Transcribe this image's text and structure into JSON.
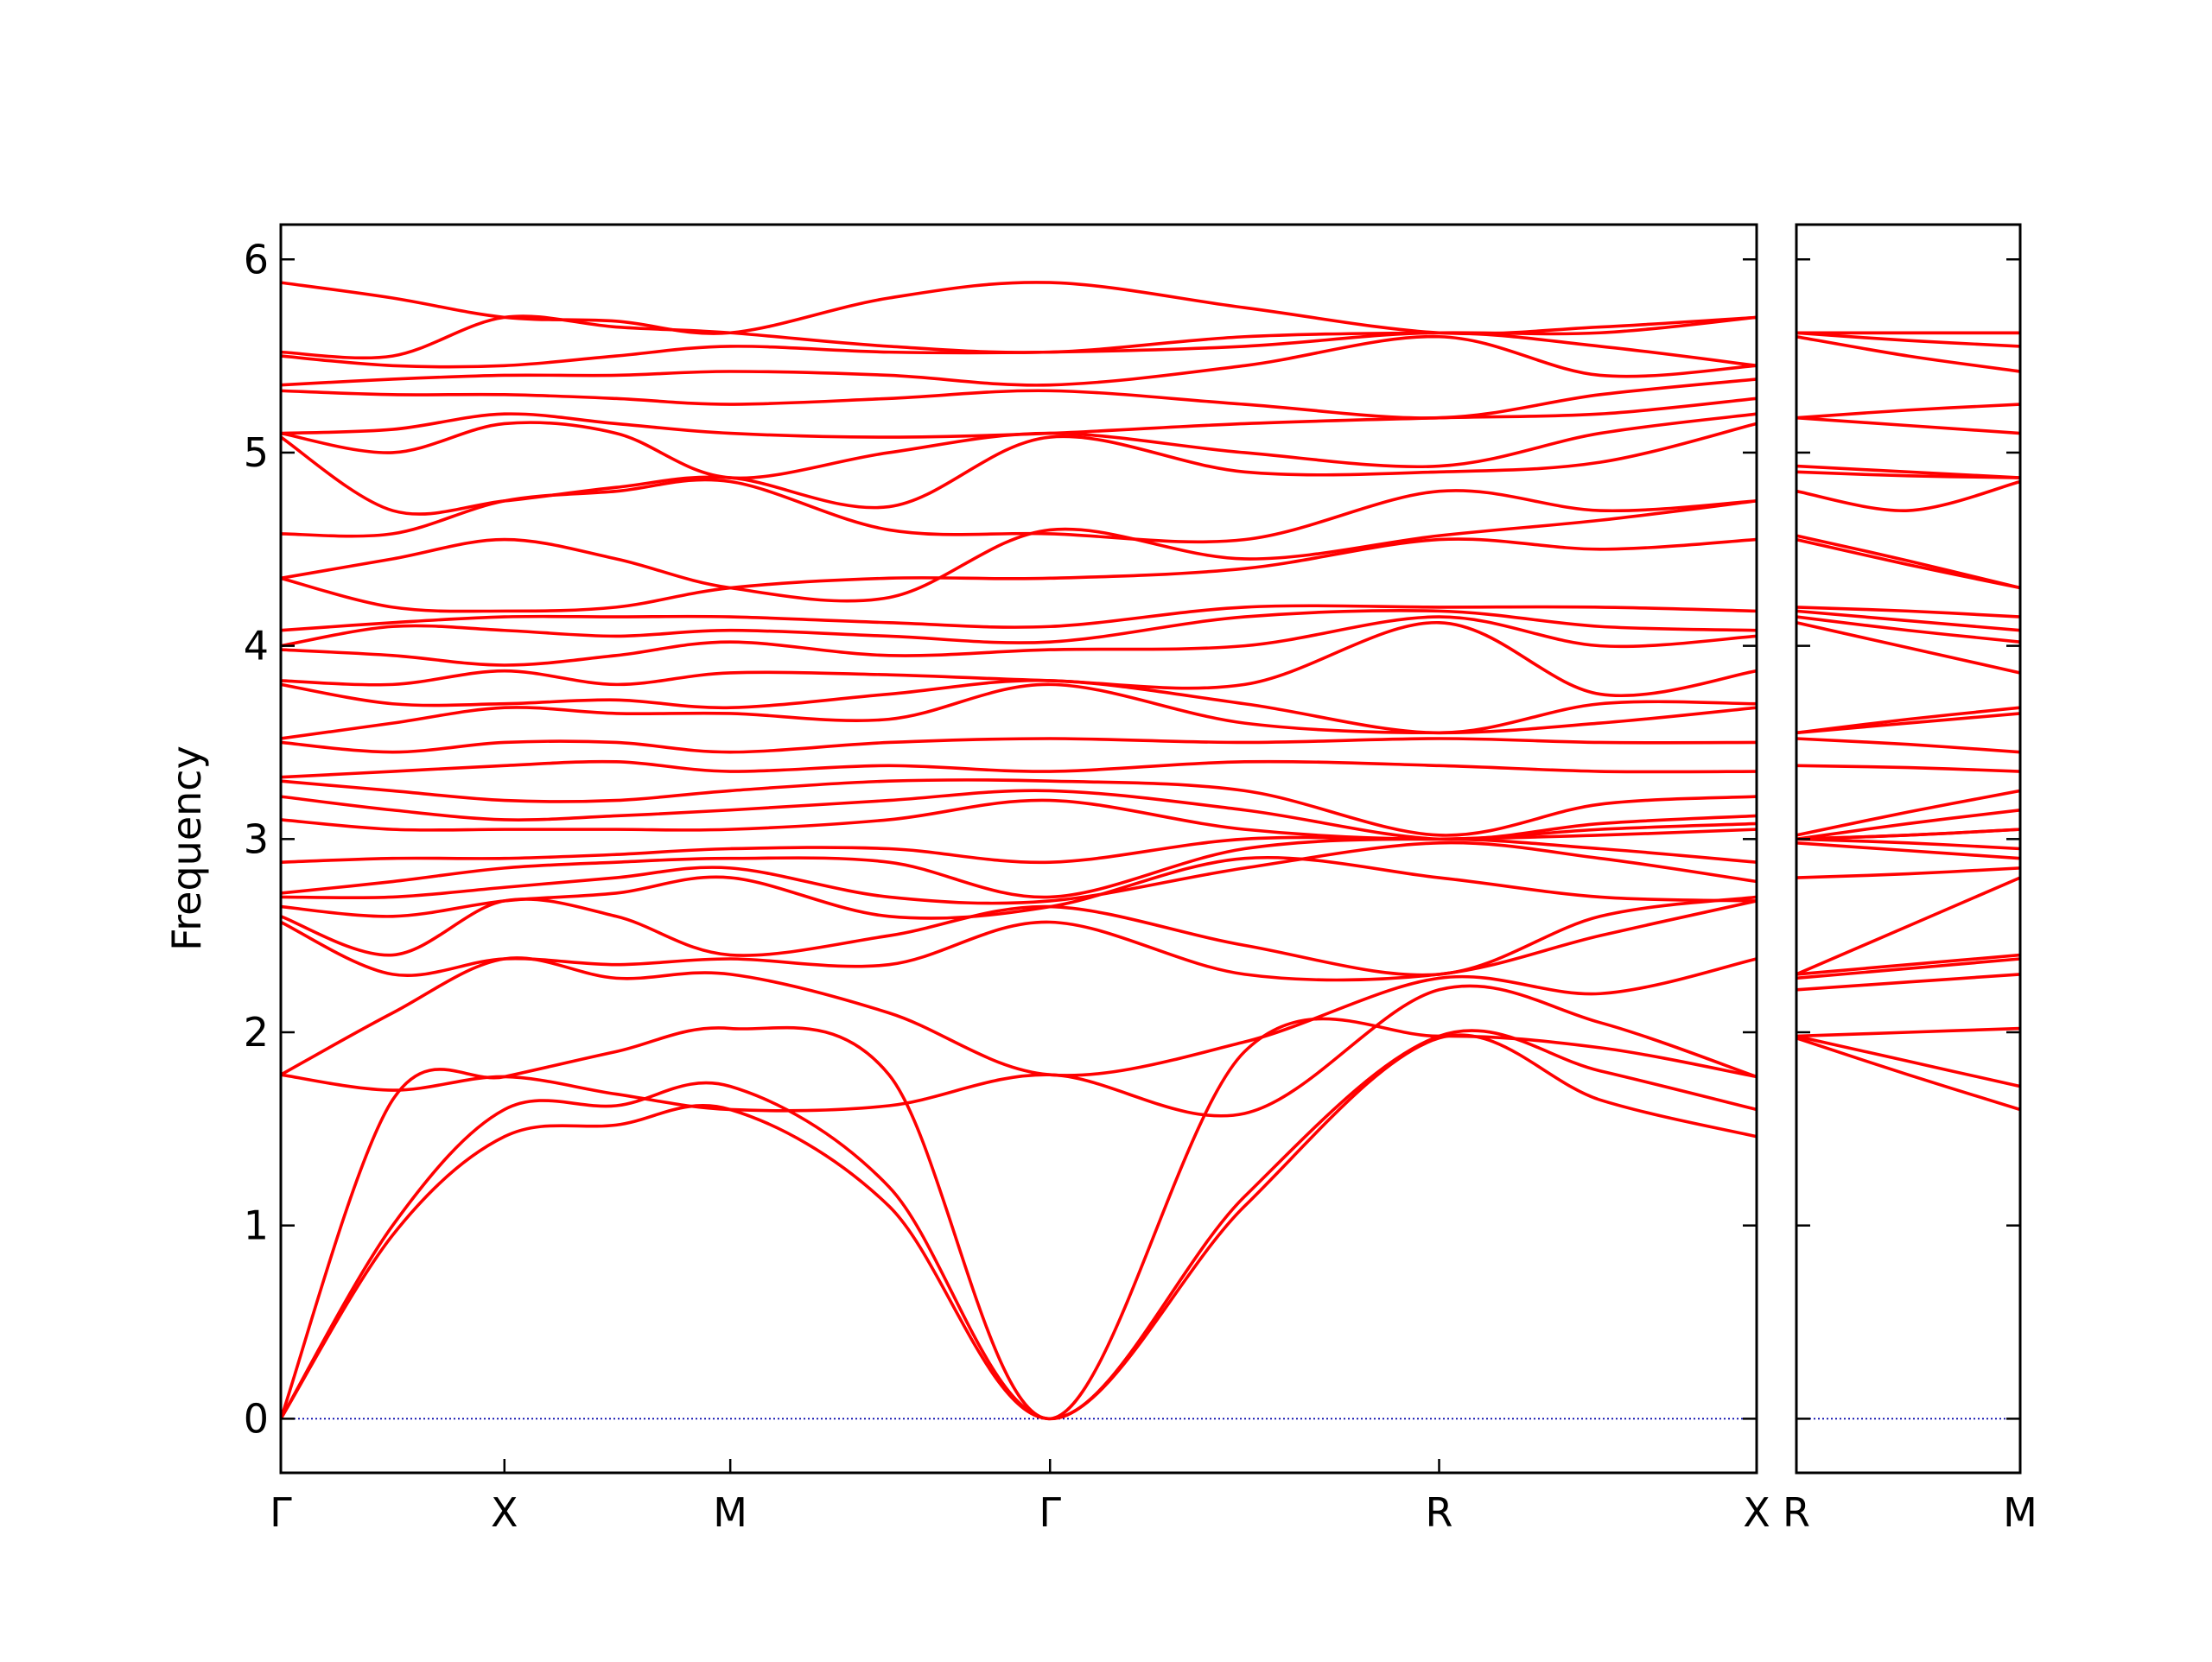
{
  "chart_data": [
    {
      "type": "line",
      "ylabel": "Frequency",
      "color": "#ff0000",
      "hline": 0,
      "hline_color": "#0000aa",
      "show_ytick_labels": true,
      "xlim": [
        0,
        6.6
      ],
      "ylim": [
        -0.28,
        6.18
      ],
      "xticks": [
        {
          "value": 0,
          "label": "Γ"
        },
        {
          "value": 1.0,
          "label": "X"
        },
        {
          "value": 2.01,
          "label": "M"
        },
        {
          "value": 3.44,
          "label": "Γ"
        },
        {
          "value": 5.18,
          "label": "R"
        },
        {
          "value": 6.6,
          "label": "X"
        }
      ],
      "yticks": [
        0,
        1,
        2,
        3,
        4,
        5,
        6
      ],
      "x": [
        0,
        0.5,
        1.0,
        1.5,
        2.01,
        2.72,
        3.44,
        4.31,
        5.18,
        5.9,
        6.6
      ],
      "series": [
        {
          "values": [
            0,
            0.95,
            1.46,
            1.52,
            1.6,
            1.1,
            0,
            1.1,
            1.97,
            1.65,
            1.46
          ]
        },
        {
          "values": [
            0,
            1.0,
            1.6,
            1.62,
            1.72,
            1.2,
            0,
            1.15,
            1.98,
            1.8,
            1.6
          ]
        },
        {
          "values": [
            0,
            1.65,
            1.77,
            1.9,
            2.02,
            1.78,
            0,
            1.9,
            1.98,
            1.92,
            1.77
          ]
        },
        {
          "values": [
            1.78,
            1.7,
            1.77,
            1.68,
            1.6,
            1.62,
            1.78,
            1.58,
            2.22,
            2.05,
            1.77
          ]
        },
        {
          "values": [
            1.78,
            2.1,
            2.38,
            2.28,
            2.3,
            2.1,
            1.78,
            1.95,
            2.28,
            2.2,
            2.38
          ]
        },
        {
          "values": [
            2.57,
            2.3,
            2.38,
            2.35,
            2.38,
            2.35,
            2.57,
            2.3,
            2.3,
            2.5,
            2.68
          ]
        },
        {
          "values": [
            2.6,
            2.4,
            2.68,
            2.6,
            2.4,
            2.5,
            2.65,
            2.45,
            2.3,
            2.6,
            2.7
          ]
        },
        {
          "values": [
            2.65,
            2.6,
            2.68,
            2.72,
            2.8,
            2.6,
            2.65,
            2.9,
            2.8,
            2.7,
            2.68
          ]
        },
        {
          "values": [
            2.7,
            2.7,
            2.75,
            2.8,
            2.85,
            2.7,
            2.68,
            2.85,
            2.98,
            2.9,
            2.78
          ]
        },
        {
          "values": [
            2.72,
            2.78,
            2.85,
            2.88,
            2.9,
            2.88,
            2.7,
            2.95,
            3.0,
            2.95,
            2.88
          ]
        },
        {
          "values": [
            2.88,
            2.9,
            2.9,
            2.92,
            2.95,
            2.95,
            2.88,
            3.0,
            3.0,
            3.02,
            3.05
          ]
        },
        {
          "values": [
            3.1,
            3.05,
            3.05,
            3.05,
            3.05,
            3.1,
            3.2,
            3.05,
            3.0,
            3.05,
            3.08
          ]
        },
        {
          "values": [
            3.22,
            3.15,
            3.1,
            3.12,
            3.15,
            3.2,
            3.25,
            3.15,
            3.0,
            3.08,
            3.12
          ]
        },
        {
          "values": [
            3.3,
            3.25,
            3.2,
            3.2,
            3.25,
            3.3,
            3.3,
            3.25,
            3.02,
            3.18,
            3.22
          ]
        },
        {
          "values": [
            3.32,
            3.35,
            3.38,
            3.4,
            3.35,
            3.38,
            3.35,
            3.4,
            3.38,
            3.35,
            3.35
          ]
        },
        {
          "values": [
            3.5,
            3.45,
            3.5,
            3.5,
            3.45,
            3.5,
            3.52,
            3.5,
            3.52,
            3.5,
            3.5
          ]
        },
        {
          "values": [
            3.52,
            3.6,
            3.68,
            3.65,
            3.65,
            3.62,
            3.8,
            3.6,
            3.55,
            3.6,
            3.68
          ]
        },
        {
          "values": [
            3.8,
            3.7,
            3.7,
            3.72,
            3.68,
            3.75,
            3.82,
            3.7,
            3.55,
            3.7,
            3.7
          ]
        },
        {
          "values": [
            3.82,
            3.8,
            3.87,
            3.8,
            3.86,
            3.85,
            3.82,
            3.8,
            4.12,
            3.75,
            3.87
          ]
        },
        {
          "values": [
            3.98,
            3.95,
            3.9,
            3.95,
            4.02,
            3.95,
            3.98,
            4.0,
            4.15,
            4.0,
            4.05
          ]
        },
        {
          "values": [
            4.0,
            4.1,
            4.08,
            4.05,
            4.08,
            4.05,
            4.02,
            4.15,
            4.18,
            4.1,
            4.08
          ]
        },
        {
          "values": [
            4.08,
            4.12,
            4.15,
            4.15,
            4.15,
            4.12,
            4.1,
            4.2,
            4.2,
            4.2,
            4.18
          ]
        },
        {
          "values": [
            4.35,
            4.2,
            4.18,
            4.2,
            4.3,
            4.35,
            4.35,
            4.4,
            4.55,
            4.5,
            4.55
          ]
        },
        {
          "values": [
            4.35,
            4.45,
            4.55,
            4.45,
            4.3,
            4.25,
            4.6,
            4.45,
            4.57,
            4.65,
            4.75
          ]
        },
        {
          "values": [
            4.58,
            4.58,
            4.75,
            4.8,
            4.85,
            4.6,
            4.58,
            4.55,
            4.8,
            4.7,
            4.75
          ]
        },
        {
          "values": [
            5.08,
            4.7,
            4.75,
            4.82,
            4.87,
            4.72,
            5.08,
            4.9,
            4.9,
            4.95,
            5.15
          ]
        },
        {
          "values": [
            5.1,
            5.0,
            5.15,
            5.1,
            4.87,
            5.0,
            5.1,
            5.0,
            4.93,
            5.1,
            5.2
          ]
        },
        {
          "values": [
            5.1,
            5.12,
            5.2,
            5.15,
            5.1,
            5.08,
            5.1,
            5.15,
            5.18,
            5.2,
            5.28
          ]
        },
        {
          "values": [
            5.32,
            5.3,
            5.3,
            5.28,
            5.25,
            5.28,
            5.32,
            5.25,
            5.18,
            5.3,
            5.38
          ]
        },
        {
          "values": [
            5.35,
            5.38,
            5.4,
            5.4,
            5.42,
            5.4,
            5.35,
            5.45,
            5.6,
            5.4,
            5.45
          ]
        },
        {
          "values": [
            5.5,
            5.45,
            5.45,
            5.5,
            5.55,
            5.52,
            5.52,
            5.55,
            5.62,
            5.55,
            5.45
          ]
        },
        {
          "values": [
            5.52,
            5.5,
            5.7,
            5.65,
            5.62,
            5.55,
            5.52,
            5.6,
            5.62,
            5.62,
            5.7
          ]
        },
        {
          "values": [
            5.88,
            5.8,
            5.7,
            5.68,
            5.62,
            5.8,
            5.88,
            5.75,
            5.62,
            5.65,
            5.7
          ]
        }
      ]
    },
    {
      "type": "line",
      "color": "#ff0000",
      "hline": 0,
      "hline_color": "#0000aa",
      "show_ytick_labels": false,
      "xlim": [
        0,
        1
      ],
      "ylim": [
        -0.28,
        6.18
      ],
      "xticks": [
        {
          "value": 0,
          "label": "R"
        },
        {
          "value": 1,
          "label": "M"
        }
      ],
      "yticks": [
        0,
        1,
        2,
        3,
        4,
        5,
        6
      ],
      "x": [
        0,
        0.5,
        1
      ],
      "series": [
        {
          "values": [
            1.97,
            1.78,
            1.6
          ]
        },
        {
          "values": [
            1.98,
            1.85,
            1.72
          ]
        },
        {
          "values": [
            1.98,
            2.0,
            2.02
          ]
        },
        {
          "values": [
            2.22,
            2.26,
            2.3
          ]
        },
        {
          "values": [
            2.28,
            2.33,
            2.38
          ]
        },
        {
          "values": [
            2.3,
            2.35,
            2.4
          ]
        },
        {
          "values": [
            2.3,
            2.55,
            2.8
          ]
        },
        {
          "values": [
            2.8,
            2.82,
            2.85
          ]
        },
        {
          "values": [
            2.98,
            2.94,
            2.9
          ]
        },
        {
          "values": [
            3.0,
            2.98,
            2.95
          ]
        },
        {
          "values": [
            3.0,
            3.02,
            3.05
          ]
        },
        {
          "values": [
            3.0,
            3.02,
            3.05
          ]
        },
        {
          "values": [
            3.0,
            3.08,
            3.15
          ]
        },
        {
          "values": [
            3.02,
            3.14,
            3.25
          ]
        },
        {
          "values": [
            3.38,
            3.37,
            3.35
          ]
        },
        {
          "values": [
            3.52,
            3.49,
            3.45
          ]
        },
        {
          "values": [
            3.55,
            3.6,
            3.65
          ]
        },
        {
          "values": [
            3.55,
            3.62,
            3.68
          ]
        },
        {
          "values": [
            4.12,
            3.99,
            3.86
          ]
        },
        {
          "values": [
            4.15,
            4.08,
            4.02
          ]
        },
        {
          "values": [
            4.18,
            4.13,
            4.08
          ]
        },
        {
          "values": [
            4.2,
            4.18,
            4.15
          ]
        },
        {
          "values": [
            4.55,
            4.42,
            4.3
          ]
        },
        {
          "values": [
            4.57,
            4.44,
            4.3
          ]
        },
        {
          "values": [
            4.8,
            4.7,
            4.85
          ]
        },
        {
          "values": [
            4.9,
            4.88,
            4.87
          ]
        },
        {
          "values": [
            4.93,
            4.9,
            4.87
          ]
        },
        {
          "values": [
            5.18,
            5.14,
            5.1
          ]
        },
        {
          "values": [
            5.18,
            5.22,
            5.25
          ]
        },
        {
          "values": [
            5.6,
            5.5,
            5.42
          ]
        },
        {
          "values": [
            5.62,
            5.58,
            5.55
          ]
        },
        {
          "values": [
            5.62,
            5.62,
            5.62
          ]
        },
        {
          "values": [
            5.62,
            5.62,
            5.62
          ]
        }
      ]
    }
  ]
}
